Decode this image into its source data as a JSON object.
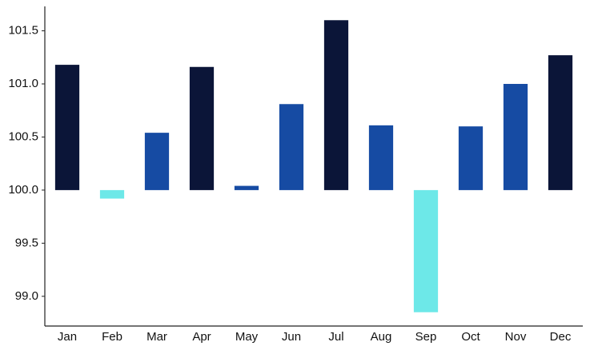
{
  "chart_data": {
    "type": "bar",
    "categories": [
      "Jan",
      "Feb",
      "Mar",
      "Apr",
      "May",
      "Jun",
      "Jul",
      "Aug",
      "Sep",
      "Oct",
      "Nov",
      "Dec"
    ],
    "values": [
      101.18,
      99.92,
      100.54,
      101.16,
      100.04,
      100.81,
      101.6,
      100.61,
      98.85,
      100.6,
      101.0,
      101.27
    ],
    "colors": [
      "#0b1538",
      "#6de8e8",
      "#164ba3",
      "#0b1538",
      "#164ba3",
      "#164ba3",
      "#0b1538",
      "#164ba3",
      "#6de8e8",
      "#164ba3",
      "#164ba3",
      "#0b1538"
    ],
    "baseline": 100,
    "ylim": [
      98.72,
      101.73
    ],
    "yticks": [
      {
        "value": 99,
        "label": "99.0"
      },
      {
        "value": 99.5,
        "label": "99.5"
      },
      {
        "value": 100,
        "label": "100.0"
      },
      {
        "value": 100.5,
        "label": "100.5"
      },
      {
        "value": 101,
        "label": "101.0"
      },
      {
        "value": 101.5,
        "label": "101.5"
      }
    ],
    "grid": false
  }
}
